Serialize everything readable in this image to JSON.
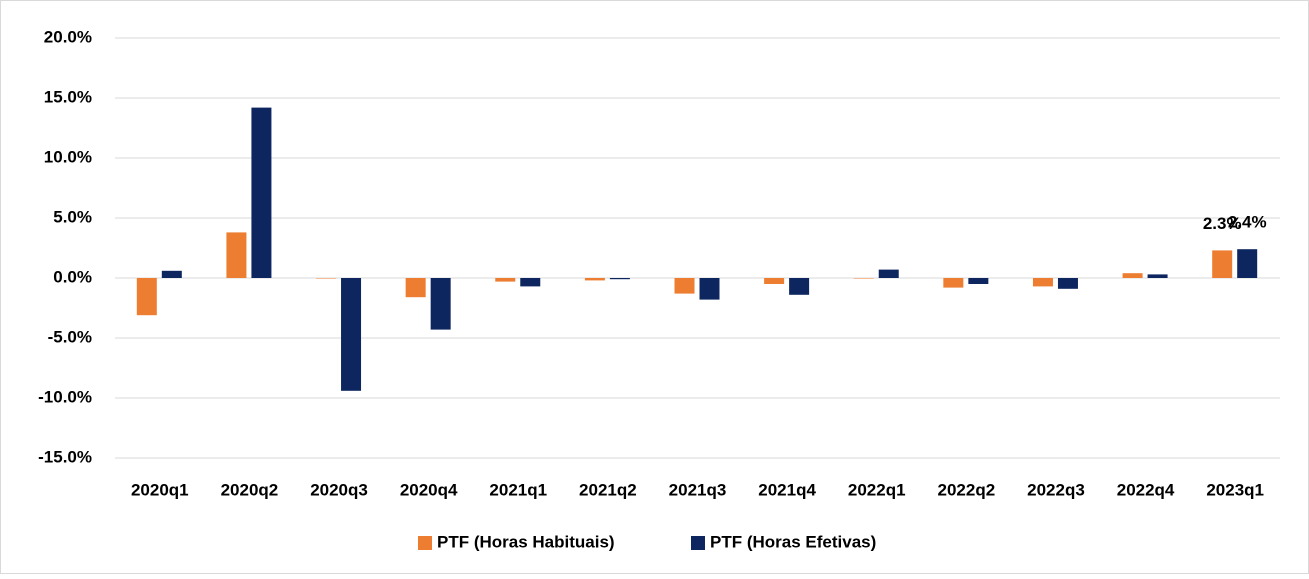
{
  "chart_data": {
    "type": "bar",
    "categories": [
      "2020q1",
      "2020q2",
      "2020q3",
      "2020q4",
      "2021q1",
      "2021q2",
      "2021q3",
      "2021q4",
      "2022q1",
      "2022q2",
      "2022q3",
      "2022q4",
      "2023q1"
    ],
    "series": [
      {
        "name": "PTF (Horas Habituais)",
        "color": "#ed7d31",
        "values": [
          -3.1,
          3.8,
          0.0,
          -1.6,
          -0.3,
          -0.2,
          -1.3,
          -0.5,
          0.0,
          -0.8,
          -0.7,
          0.4,
          2.3
        ],
        "value_labels": [
          null,
          null,
          null,
          null,
          null,
          null,
          null,
          null,
          null,
          null,
          null,
          null,
          "2.3%"
        ]
      },
      {
        "name": "PTF (Horas Efetivas)",
        "color": "#0d2660",
        "values": [
          0.6,
          14.2,
          -9.4,
          -4.3,
          -0.7,
          -0.1,
          -1.8,
          -1.4,
          0.7,
          -0.5,
          -0.9,
          0.3,
          2.4
        ],
        "value_labels": [
          null,
          null,
          null,
          null,
          null,
          null,
          null,
          null,
          null,
          null,
          null,
          null,
          "2.4%"
        ]
      }
    ],
    "ylim": [
      -15,
      20
    ],
    "yticks": [
      {
        "value": -15,
        "label": "-15.0%"
      },
      {
        "value": -10,
        "label": "-10.0%"
      },
      {
        "value": -5,
        "label": "-5.0%"
      },
      {
        "value": 0,
        "label": "0.0%"
      },
      {
        "value": 5,
        "label": "5.0%"
      },
      {
        "value": 10,
        "label": "10.0%"
      },
      {
        "value": 15,
        "label": "15.0%"
      },
      {
        "value": 20,
        "label": "20.0%"
      }
    ],
    "grid": true,
    "legend": "bottom"
  }
}
